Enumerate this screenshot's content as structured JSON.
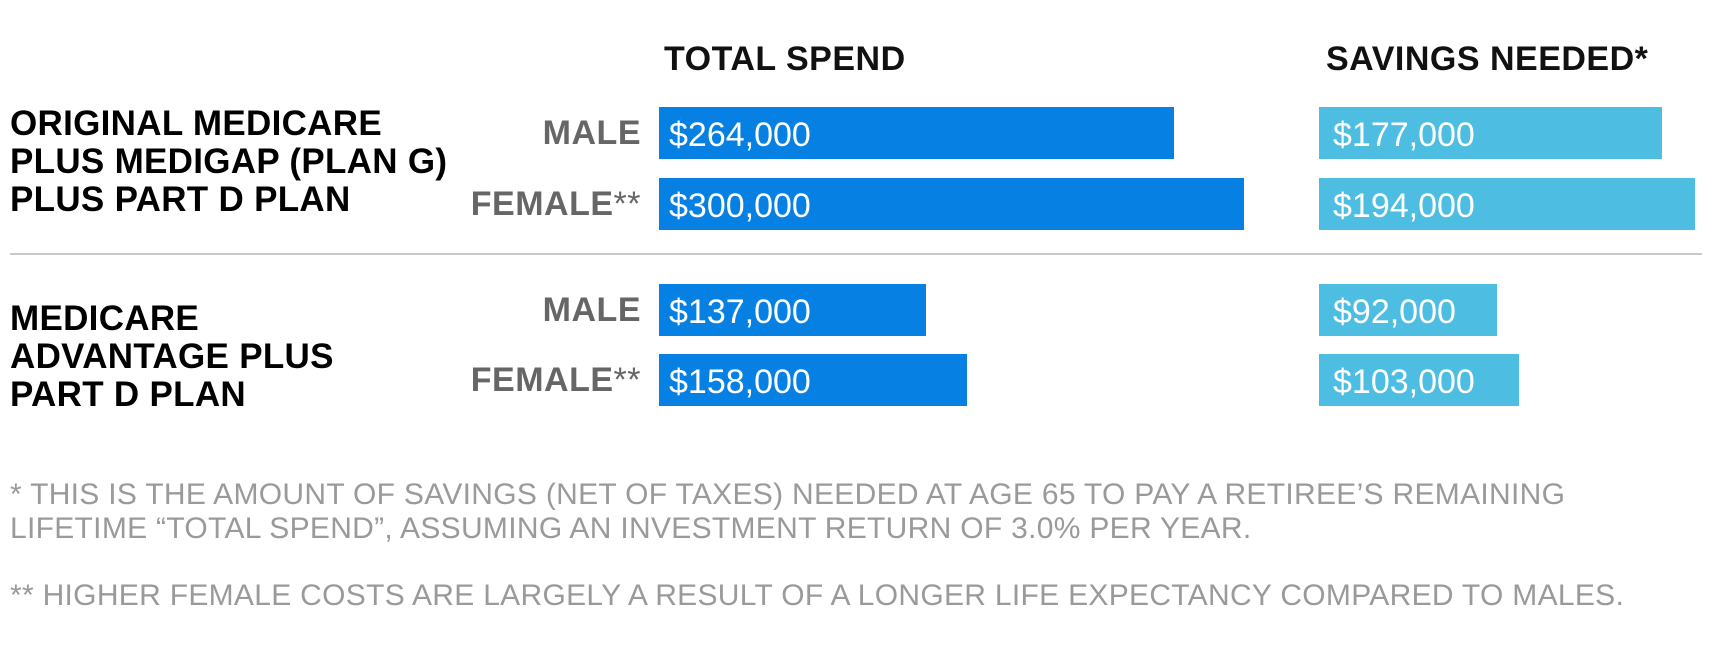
{
  "header": {
    "total_spend": "TOTAL SPEND",
    "savings_needed": "SAVINGS NEEDED*"
  },
  "groups": [
    {
      "label_lines": [
        "ORIGINAL MEDICARE",
        "PLUS MEDIGAP (PLAN G)",
        "PLUS PART D PLAN"
      ],
      "rows": [
        {
          "label": "MALE",
          "stars": "",
          "total_spend": "$264,000",
          "savings_needed": "$177,000"
        },
        {
          "label": "FEMALE",
          "stars": "**",
          "total_spend": "$300,000",
          "savings_needed": "$194,000"
        }
      ]
    },
    {
      "label_lines": [
        "MEDICARE",
        "ADVANTAGE PLUS",
        "PART D PLAN"
      ],
      "rows": [
        {
          "label": "MALE",
          "stars": "",
          "total_spend": "$137,000",
          "savings_needed": "$92,000"
        },
        {
          "label": "FEMALE",
          "stars": "**",
          "total_spend": "$158,000",
          "savings_needed": "$103,000"
        }
      ]
    }
  ],
  "footnotes": {
    "savings_lines": [
      "* THIS IS THE AMOUNT OF SAVINGS (NET OF TAXES) NEEDED AT AGE 65 TO PAY A RETIREE’S REMAINING",
      "LIFETIME “TOTAL SPEND”, ASSUMING AN INVESTMENT RETURN OF 3.0% PER YEAR."
    ],
    "female": "** HIGHER FEMALE COSTS ARE LARGELY A RESULT OF A LONGER LIFE EXPECTANCY COMPARED TO MALES."
  },
  "colors": {
    "total_spend_bar": "#0681e3",
    "savings_needed_bar": "#4dbde2"
  },
  "chart_data": {
    "type": "bar",
    "orientation": "horizontal",
    "groups": [
      "ORIGINAL MEDICARE PLUS MEDIGAP (PLAN G) PLUS PART D PLAN",
      "MEDICARE ADVANTAGE PLUS PART D PLAN"
    ],
    "categories": [
      "MALE",
      "FEMALE**",
      "MALE",
      "FEMALE**"
    ],
    "series": [
      {
        "name": "TOTAL SPEND",
        "values": [
          264000,
          300000,
          137000,
          158000
        ]
      },
      {
        "name": "SAVINGS NEEDED*",
        "values": [
          177000,
          194000,
          92000,
          103000
        ]
      }
    ],
    "grid": false,
    "legend": "none"
  }
}
